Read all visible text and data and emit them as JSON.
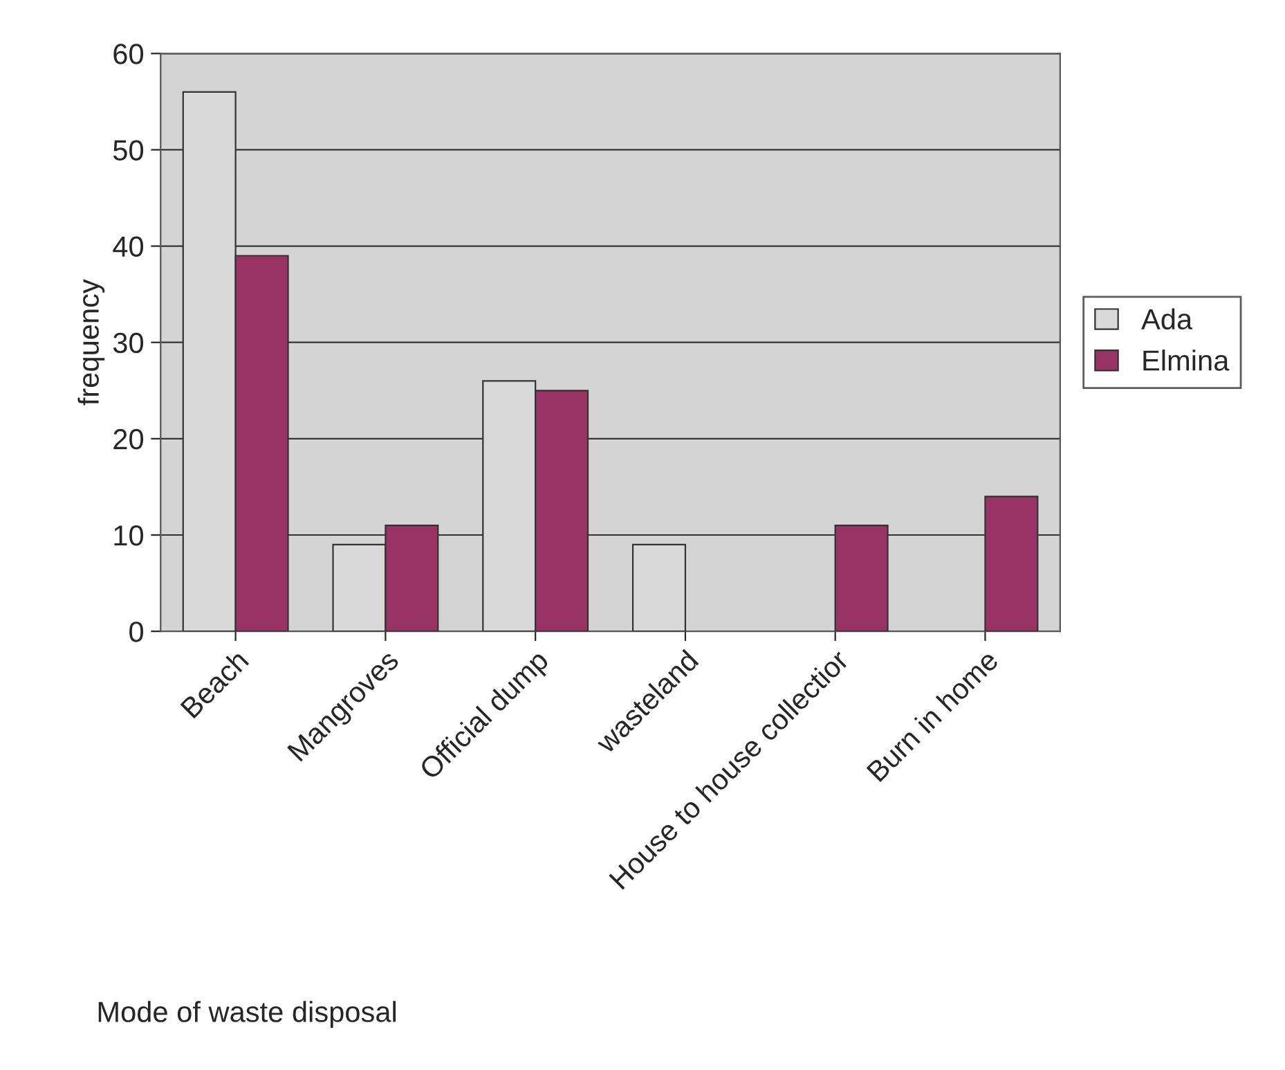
{
  "chart_data": {
    "type": "bar",
    "xlabel": "Mode of waste disposal",
    "ylabel": "frequency",
    "categories": [
      "Beach",
      "Mangroves",
      "Official dump",
      "wasteland",
      "House to house collectior",
      "Burn in home"
    ],
    "series": [
      {
        "name": "Ada",
        "color": "#d9d9d9",
        "values": [
          56,
          9,
          26,
          9,
          null,
          null
        ]
      },
      {
        "name": "Elmina",
        "color": "#993366",
        "values": [
          39,
          11,
          25,
          null,
          11,
          14
        ]
      }
    ],
    "ylim": [
      0,
      60
    ],
    "yticks": [
      0,
      10,
      20,
      30,
      40,
      50,
      60
    ],
    "grid": "y",
    "legend": "right"
  }
}
